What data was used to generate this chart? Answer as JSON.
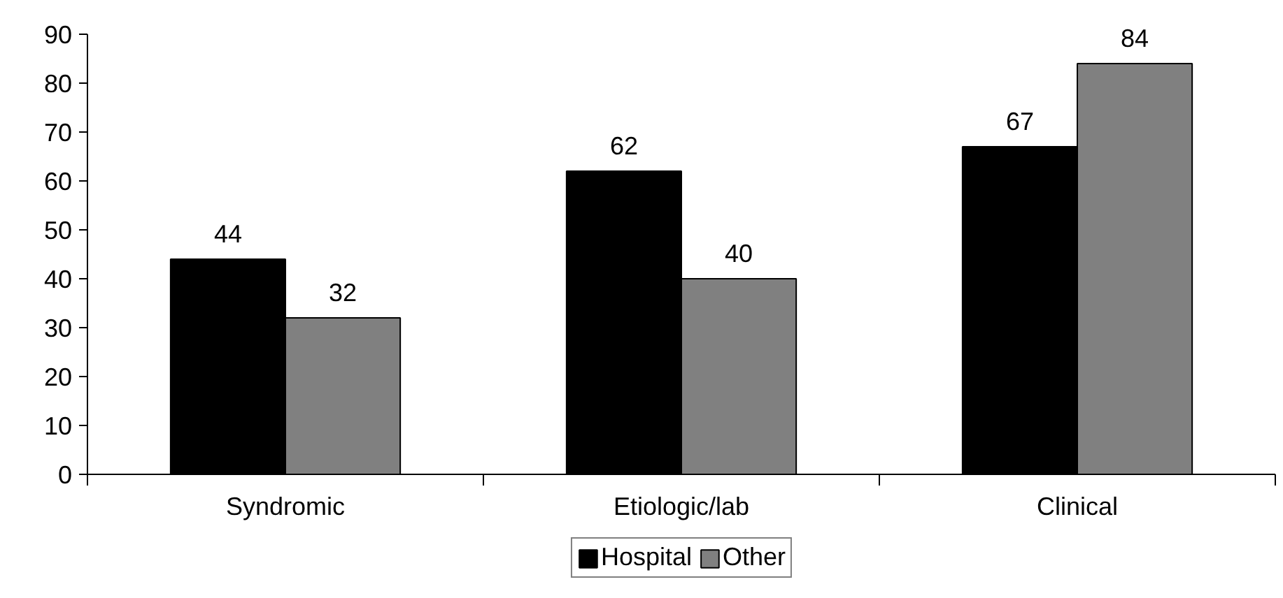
{
  "chart_data": {
    "type": "bar",
    "categories": [
      "Syndromic",
      "Etiologic/lab",
      "Clinical"
    ],
    "series": [
      {
        "name": "Hospital",
        "color": "#000000",
        "values": [
          44,
          62,
          67
        ]
      },
      {
        "name": "Other",
        "color": "#808080",
        "values": [
          32,
          40,
          84
        ]
      }
    ],
    "ylim": [
      0,
      90
    ],
    "yticks": [
      0,
      10,
      20,
      30,
      40,
      50,
      60,
      70,
      80,
      90
    ],
    "grid": false,
    "legend": "bottom",
    "data_labels": true
  }
}
